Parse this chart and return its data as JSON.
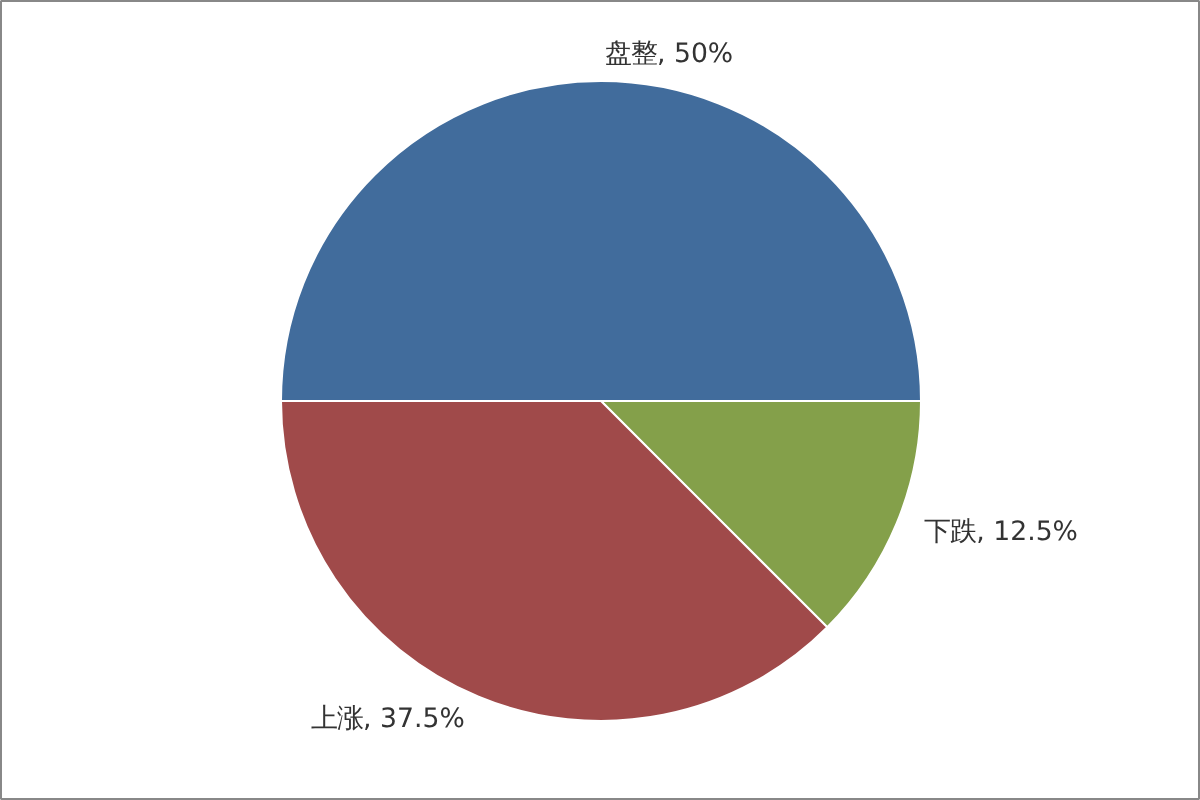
{
  "chart_data": {
    "type": "pie",
    "categories": [
      "盘整",
      "下跌",
      "上涨"
    ],
    "values": [
      50,
      12.5,
      37.5
    ],
    "colors": [
      "#416c9c",
      "#84a04a",
      "#a04a4a"
    ],
    "value_labels": [
      "50%",
      "12.5%",
      "37.5%"
    ]
  }
}
